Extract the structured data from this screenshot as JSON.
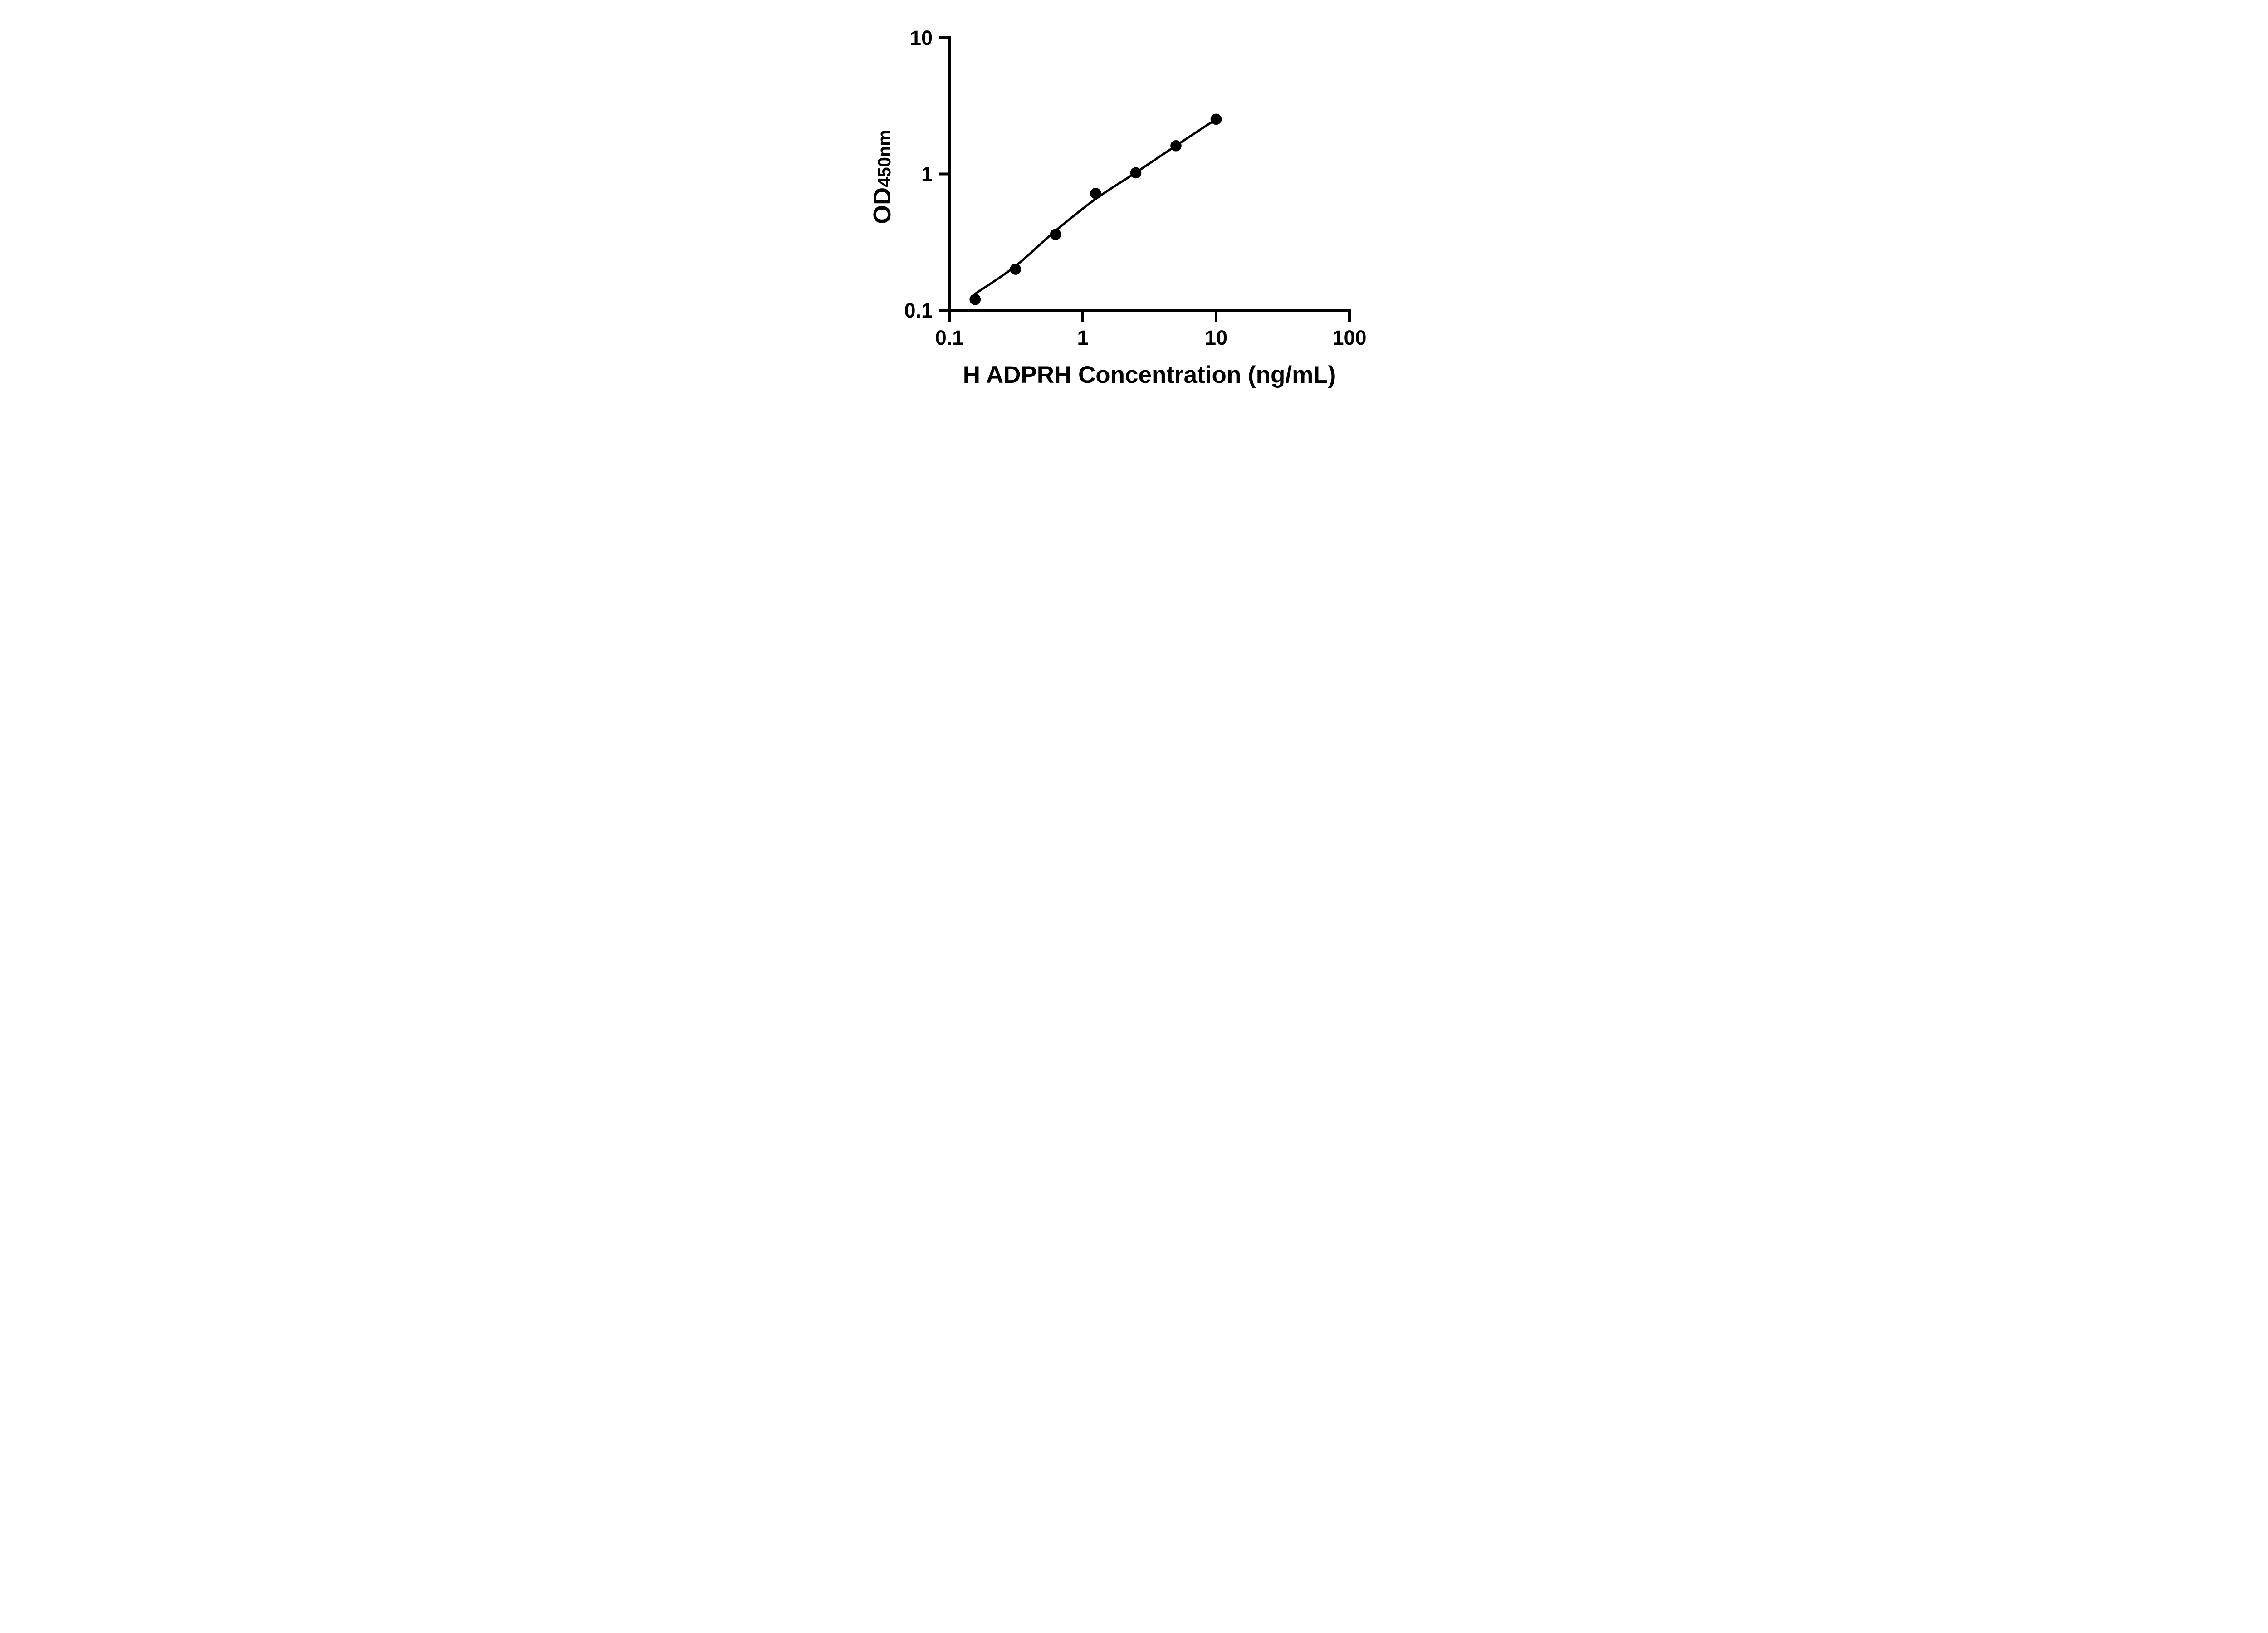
{
  "chart_data": {
    "type": "scatter",
    "title": "",
    "xlabel": "H ADPRH Concentration (ng/mL)",
    "ylabel": "OD450nm",
    "ylabel_main": "OD",
    "ylabel_sub": "450nm",
    "x_scale": "log",
    "y_scale": "log",
    "xlim": [
      0.1,
      100
    ],
    "ylim": [
      0.1,
      10
    ],
    "x_ticks": [
      0.1,
      1,
      10,
      100
    ],
    "x_tick_labels": [
      "0.1",
      "1",
      "10",
      "100"
    ],
    "y_ticks": [
      0.1,
      1,
      10
    ],
    "y_tick_labels": [
      "0.1",
      "1",
      "10"
    ],
    "grid": false,
    "legend_position": "none",
    "axis_color": "#000000",
    "background_color": "#ffffff",
    "series": [
      {
        "name": "standard-curve-points",
        "marker": "circle",
        "color": "#000000",
        "x": [
          0.156,
          0.313,
          0.625,
          1.25,
          2.5,
          5,
          10
        ],
        "y": [
          0.12,
          0.2,
          0.36,
          0.72,
          1.02,
          1.61,
          2.52
        ]
      }
    ],
    "fit_curve": {
      "name": "4pl-fit-line",
      "color": "#000000",
      "x": [
        0.156,
        0.313,
        0.625,
        1.25,
        2.5,
        5,
        10
      ],
      "y": [
        0.132,
        0.211,
        0.383,
        0.656,
        1.023,
        1.613,
        2.52
      ]
    }
  }
}
